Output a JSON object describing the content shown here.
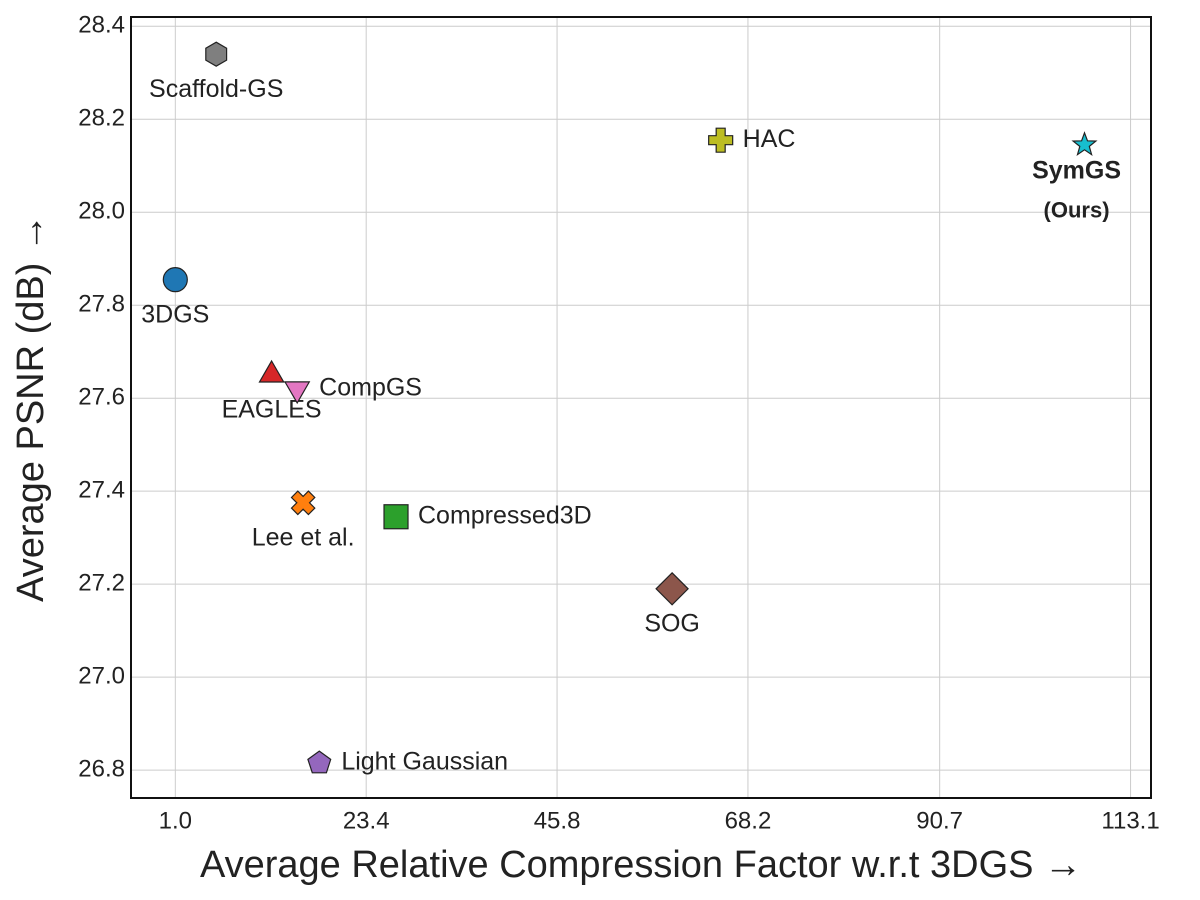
{
  "chart_data": {
    "type": "scatter",
    "xlabel": "Average Relative Compression Factor w.r.t 3DGS →",
    "ylabel": "Average PSNR (dB) →",
    "xlim": [
      -4.2,
      115.5
    ],
    "ylim": [
      26.74,
      28.42
    ],
    "xticks": [
      "1.0",
      "23.4",
      "45.8",
      "68.2",
      "90.7",
      "113.1"
    ],
    "yticks": [
      "26.8",
      "27.0",
      "27.2",
      "27.4",
      "27.6",
      "27.8",
      "28.0",
      "28.2",
      "28.4"
    ],
    "grid": true,
    "points": [
      {
        "label": "Scaffold-GS",
        "x": 5.8,
        "y": 28.34,
        "marker": "hexagon",
        "color": "#7f7f7f",
        "label_pos": "below"
      },
      {
        "label": "HAC",
        "x": 65.0,
        "y": 28.155,
        "marker": "plus",
        "color": "#bcbd22",
        "label_pos": "right"
      },
      {
        "label": "SymGS",
        "label2": "(Ours)",
        "x": 107.7,
        "y": 28.145,
        "marker": "star",
        "color": "#17becf",
        "label_pos": "below",
        "bold": true
      },
      {
        "label": "3DGS",
        "x": 1.0,
        "y": 27.855,
        "marker": "circle",
        "color": "#1f77b4",
        "label_pos": "below"
      },
      {
        "label": "EAGLES",
        "x": 12.3,
        "y": 27.65,
        "marker": "triangle-up",
        "color": "#d62728",
        "label_pos": "below"
      },
      {
        "label": "CompGS",
        "x": 15.3,
        "y": 27.62,
        "marker": "triangle-down",
        "color": "#e377c2",
        "label_pos": "right"
      },
      {
        "label": "Lee et al.",
        "x": 16.0,
        "y": 27.375,
        "marker": "x",
        "color": "#ff7f0e",
        "label_pos": "below"
      },
      {
        "label": "Compressed3D",
        "x": 26.9,
        "y": 27.345,
        "marker": "square",
        "color": "#2ca02c",
        "label_pos": "right"
      },
      {
        "label": "SOG",
        "x": 59.3,
        "y": 27.19,
        "marker": "diamond",
        "color": "#8c564b",
        "label_pos": "below"
      },
      {
        "label": "Light Gaussian",
        "x": 17.9,
        "y": 26.815,
        "marker": "pentagon",
        "color": "#9467bd",
        "label_pos": "right"
      }
    ]
  }
}
